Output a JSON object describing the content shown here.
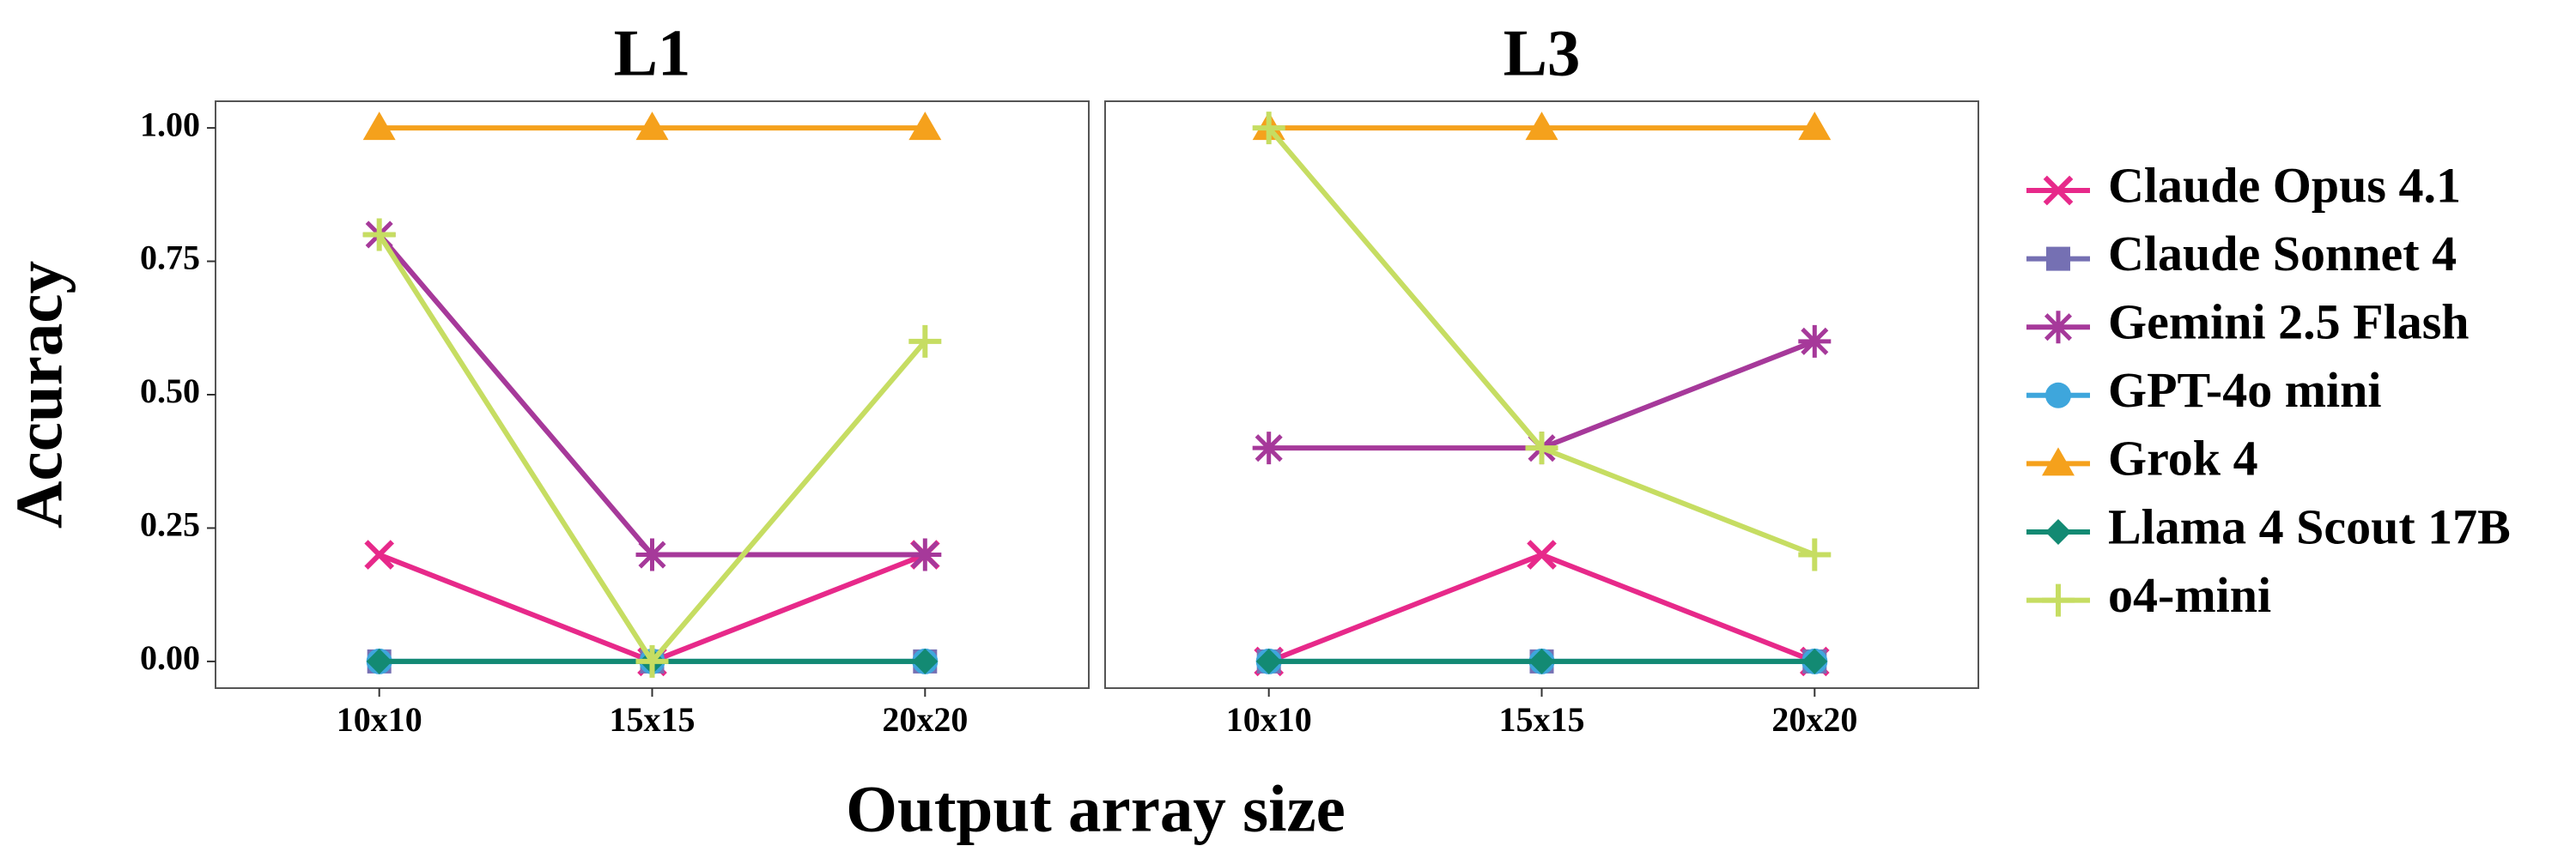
{
  "chart_data": [
    {
      "type": "line",
      "title": "L1",
      "xlabel": "Output array size",
      "ylabel": "Accuracy",
      "categories": [
        "10x10",
        "15x15",
        "20x20"
      ],
      "ylim": [
        -0.05,
        1.05
      ],
      "yticks": [
        {
          "value": 0,
          "label": "0.00"
        },
        {
          "value": 0.25,
          "label": "0.25"
        },
        {
          "value": 0.5,
          "label": "0.50"
        },
        {
          "value": 0.75,
          "label": "0.75"
        },
        {
          "value": 1,
          "label": "1.00"
        }
      ],
      "series": [
        {
          "name": "Claude Opus 4.1",
          "color": "#e7298a",
          "marker": "cross",
          "values": [
            0.2,
            0,
            0.2
          ]
        },
        {
          "name": "Claude Sonnet 4",
          "color": "#7570b3",
          "marker": "square",
          "values": [
            0,
            0,
            0
          ]
        },
        {
          "name": "Gemini 2.5 Flash",
          "color": "#a6399a",
          "marker": "asterisk",
          "values": [
            0.8,
            0.2,
            0.2
          ]
        },
        {
          "name": "GPT-4o mini",
          "color": "#3ea6dc",
          "marker": "circle",
          "values": [
            0,
            0,
            0
          ]
        },
        {
          "name": "Grok 4",
          "color": "#f5a11c",
          "marker": "triangle",
          "values": [
            1,
            1,
            1
          ]
        },
        {
          "name": "Llama 4 Scout 17B",
          "color": "#138a73",
          "marker": "diamond",
          "values": [
            0,
            0,
            0
          ]
        },
        {
          "name": "o4-mini",
          "color": "#c6dd62",
          "marker": "plus",
          "values": [
            0.8,
            0,
            0.6
          ]
        }
      ]
    },
    {
      "type": "line",
      "title": "L3",
      "categories": [
        "10x10",
        "15x15",
        "20x20"
      ],
      "ylim": [
        -0.05,
        1.05
      ],
      "series": [
        {
          "color": "#e7298a",
          "marker": "cross",
          "values": [
            0,
            0.2,
            0
          ]
        },
        {
          "color": "#7570b3",
          "marker": "square",
          "values": [
            0,
            0,
            0
          ]
        },
        {
          "color": "#a6399a",
          "marker": "asterisk",
          "values": [
            0.4,
            0.4,
            0.6
          ]
        },
        {
          "color": "#3ea6dc",
          "marker": "circle",
          "values": [
            0,
            0,
            0
          ]
        },
        {
          "color": "#f5a11c",
          "marker": "triangle",
          "values": [
            1,
            1,
            1
          ]
        },
        {
          "color": "#138a73",
          "marker": "diamond",
          "values": [
            0,
            0,
            0
          ]
        },
        {
          "color": "#c6dd62",
          "marker": "plus",
          "values": [
            1,
            0.4,
            0.2
          ]
        }
      ]
    }
  ]
}
